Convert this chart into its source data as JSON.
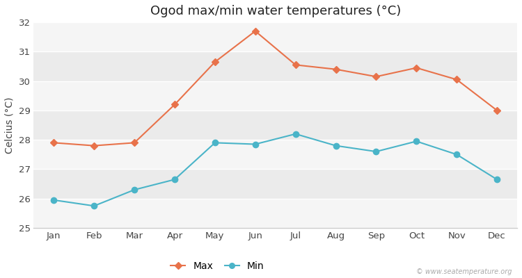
{
  "title": "Ogod max/min water temperatures (°C)",
  "ylabel": "Celcius (°C)",
  "months": [
    "Jan",
    "Feb",
    "Mar",
    "Apr",
    "May",
    "Jun",
    "Jul",
    "Aug",
    "Sep",
    "Oct",
    "Nov",
    "Dec"
  ],
  "max_values": [
    27.9,
    27.8,
    27.9,
    29.2,
    30.65,
    31.7,
    30.55,
    30.4,
    30.15,
    30.45,
    30.05,
    29.0
  ],
  "min_values": [
    25.95,
    25.75,
    26.3,
    26.65,
    27.9,
    27.85,
    28.2,
    27.8,
    27.6,
    27.95,
    27.5,
    26.65
  ],
  "max_color": "#e8724a",
  "min_color": "#4ab4c8",
  "fig_bg_color": "#ffffff",
  "band_colors": [
    "#f5f5f5",
    "#ebebeb"
  ],
  "ylim": [
    25,
    32
  ],
  "yticks": [
    25,
    26,
    27,
    28,
    29,
    30,
    31,
    32
  ],
  "legend_labels": [
    "Max",
    "Min"
  ],
  "watermark": "© www.seatemperature.org",
  "title_fontsize": 13,
  "axis_fontsize": 10,
  "tick_fontsize": 9.5
}
